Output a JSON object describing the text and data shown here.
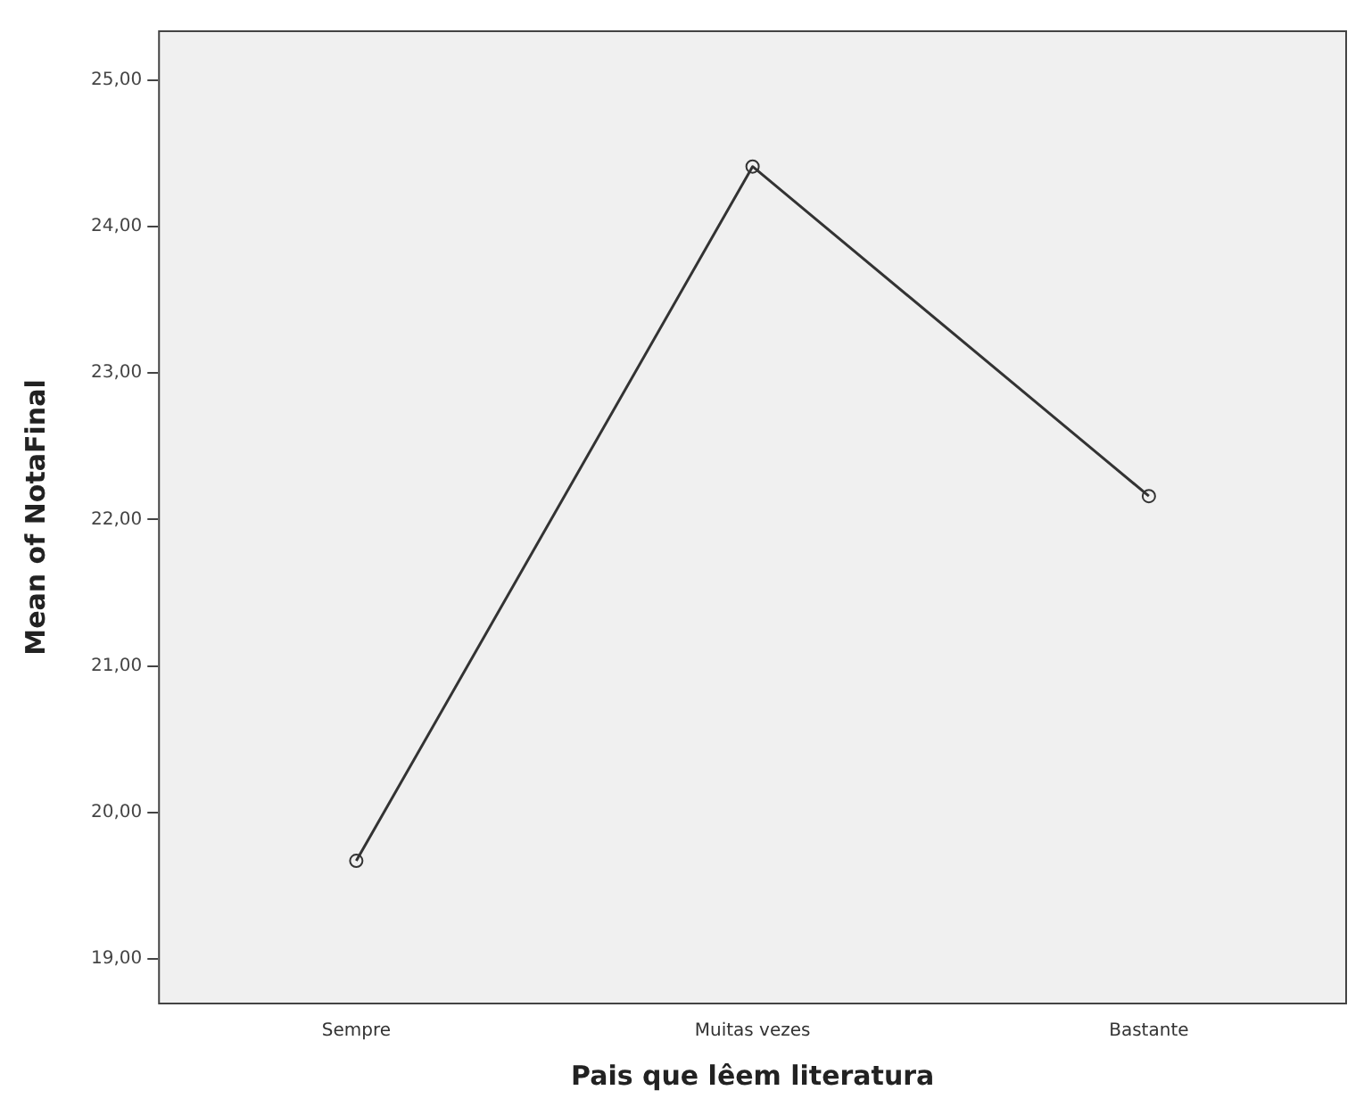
{
  "chart_data": {
    "type": "line",
    "xlabel": "Pais que lêem literatura",
    "ylabel": "Mean of NotaFinal",
    "categories": [
      "Sempre",
      "Muitas vezes",
      "Bastante"
    ],
    "series": [
      {
        "color": "#333333",
        "values": [
          19.67,
          24.41,
          22.16
        ]
      }
    ],
    "ylim": [
      18.69,
      25.34
    ],
    "yticks": [
      {
        "value": 19,
        "label": "19,00"
      },
      {
        "value": 20,
        "label": "20,00"
      },
      {
        "value": 21,
        "label": "21,00"
      },
      {
        "value": 22,
        "label": "22,00"
      },
      {
        "value": 23,
        "label": "23,00"
      },
      {
        "value": 24,
        "label": "24,00"
      },
      {
        "value": 25,
        "label": "25,00"
      }
    ],
    "grid": false,
    "legend": false,
    "marker": "circle",
    "line_style": "solid"
  }
}
